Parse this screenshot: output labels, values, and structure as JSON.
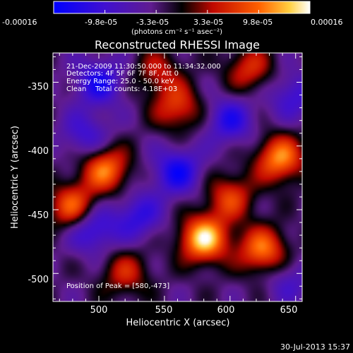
{
  "colorbar": {
    "tick_labels": [
      "-0.00016",
      "-9.8e-05",
      "-3.3e-05",
      "3.3e-05",
      "9.8e-05",
      "0.00016"
    ],
    "units_label": "(photons cm⁻² s⁻¹ asec⁻²)"
  },
  "plot": {
    "title": "Reconstructed RHESSI Image",
    "xlabel": "Heliocentric X (arcsec)",
    "ylabel": "Heliocentric Y (arcsec)",
    "x_ticks": [
      "500",
      "550",
      "600",
      "650"
    ],
    "y_ticks": [
      "-350",
      "-400",
      "-450",
      "-500"
    ],
    "info_lines": [
      "21-Dec-2009 11:30:50.000 to 11:34:32.000",
      "Detectors: 4F 5F 6F 7F 8F, Att 0",
      "Energy Range: 25.0 - 50.0 keV",
      "Clean    Total counts: 4.18E+03"
    ],
    "peak_label": "Position of Peak = [580,-473]"
  },
  "footer": {
    "date_stamp": "30-Jul-2013 15:37"
  },
  "chart_data": {
    "type": "heatmap",
    "title": "Reconstructed RHESSI Image",
    "xlabel": "Heliocentric X (arcsec)",
    "ylabel": "Heliocentric Y (arcsec)",
    "xlim": [
      465,
      655
    ],
    "ylim": [
      -522,
      -327
    ],
    "value_range": [
      -0.00016,
      0.00016
    ],
    "colormap": [
      "#0000ff",
      "#6020c0",
      "#000000",
      "#c01000",
      "#ff6000",
      "#ffffff"
    ],
    "peak": [
      580,
      -473
    ],
    "sources": [
      {
        "x": 580,
        "y": -473,
        "strength": 1.0
      },
      {
        "x": 638,
        "y": -410,
        "strength": 0.8
      },
      {
        "x": 505,
        "y": -418,
        "strength": 0.75
      },
      {
        "x": 480,
        "y": -448,
        "strength": 0.7
      },
      {
        "x": 625,
        "y": -482,
        "strength": 0.75
      },
      {
        "x": 560,
        "y": -370,
        "strength": 0.55
      },
      {
        "x": 615,
        "y": -340,
        "strength": 0.5
      },
      {
        "x": 520,
        "y": -500,
        "strength": 0.45
      },
      {
        "x": 600,
        "y": -440,
        "strength": 0.55
      },
      {
        "x": 545,
        "y": -342,
        "strength": 0.4
      },
      {
        "x": 500,
        "y": -350,
        "strength": -0.55
      },
      {
        "x": 560,
        "y": -420,
        "strength": -0.6
      },
      {
        "x": 495,
        "y": -465,
        "strength": -0.55
      },
      {
        "x": 600,
        "y": -380,
        "strength": -0.5
      },
      {
        "x": 530,
        "y": -455,
        "strength": -0.45
      },
      {
        "x": 648,
        "y": -360,
        "strength": -0.4
      },
      {
        "x": 645,
        "y": -505,
        "strength": -0.3
      },
      {
        "x": 490,
        "y": -392,
        "strength": -0.4
      }
    ]
  }
}
